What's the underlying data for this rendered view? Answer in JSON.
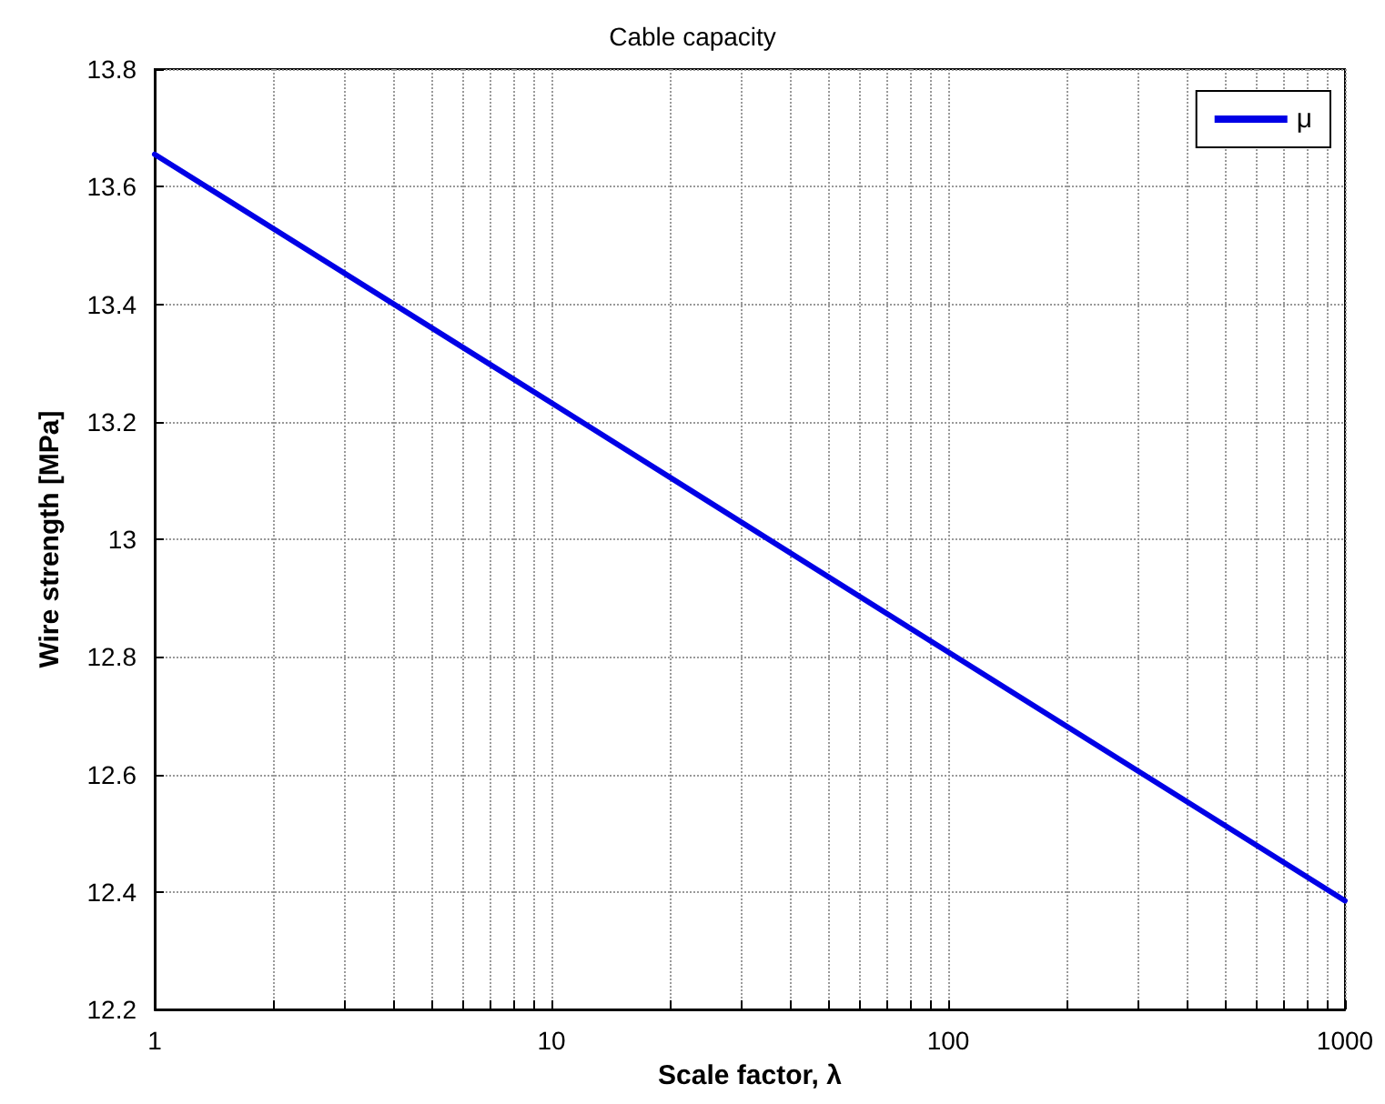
{
  "chart_data": {
    "type": "line",
    "title": "Cable capacity",
    "xlabel": "Scale factor, λ",
    "ylabel": "Wire strength [MPa]",
    "x": [
      1,
      10,
      100,
      1000
    ],
    "series": [
      {
        "name": "μ",
        "color": "#0000e6",
        "values": [
          13.655,
          13.232,
          12.808,
          12.385
        ]
      }
    ],
    "log": "x",
    "xlim": [
      1,
      1000
    ],
    "xticks": [
      1,
      {
        "value": 2,
        "label": null
      },
      {
        "value": 3,
        "label": null
      },
      {
        "value": 4,
        "label": null
      },
      {
        "value": 5,
        "label": null
      },
      {
        "value": 6,
        "label": null
      },
      {
        "value": 7,
        "label": null
      },
      {
        "value": 8,
        "label": null
      },
      {
        "value": 9,
        "label": null
      },
      10,
      {
        "value": 20,
        "label": null
      },
      {
        "value": 30,
        "label": null
      },
      {
        "value": 40,
        "label": null
      },
      {
        "value": 50,
        "label": null
      },
      {
        "value": 60,
        "label": null
      },
      {
        "value": 70,
        "label": null
      },
      {
        "value": 80,
        "label": null
      },
      {
        "value": 90,
        "label": null
      },
      100,
      {
        "value": 200,
        "label": null
      },
      {
        "value": 300,
        "label": null
      },
      {
        "value": 400,
        "label": null
      },
      {
        "value": 500,
        "label": null
      },
      {
        "value": 600,
        "label": null
      },
      {
        "value": 700,
        "label": null
      },
      {
        "value": 800,
        "label": null
      },
      {
        "value": 900,
        "label": null
      },
      1000
    ],
    "ylim": [
      12.2,
      13.8
    ],
    "yticks": [
      12.2,
      12.4,
      12.6,
      12.8,
      13,
      13.2,
      13.4,
      13.6,
      13.8
    ],
    "grid": true,
    "legend": "top right",
    "marker": "none",
    "line_style": "solid"
  }
}
